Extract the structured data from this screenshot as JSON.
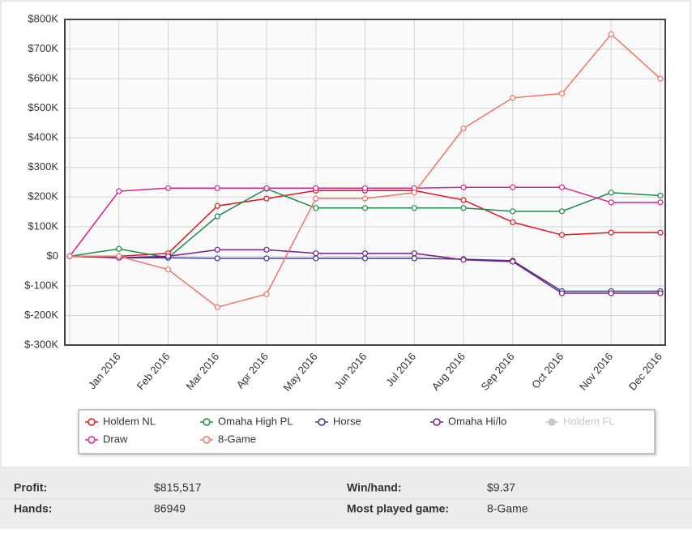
{
  "chart_data": {
    "type": "line",
    "categories": [
      null,
      "Jan 2016",
      "Feb 2016",
      "Mar 2016",
      "Apr 2016",
      "May 2016",
      "Jun 2016",
      "Jul 2016",
      "Aug 2016",
      "Sep 2016",
      "Oct 2016",
      "Nov 2016",
      "Dec 2016"
    ],
    "ylim": [
      -300000,
      800000
    ],
    "yticks": [
      {
        "value": -300000,
        "label": "$-300K"
      },
      {
        "value": -200000,
        "label": "$-200K"
      },
      {
        "value": -100000,
        "label": "$-100K"
      },
      {
        "value": 0,
        "label": "$0"
      },
      {
        "value": 100000,
        "label": "$100K"
      },
      {
        "value": 200000,
        "label": "$200K"
      },
      {
        "value": 300000,
        "label": "$300K"
      },
      {
        "value": 400000,
        "label": "$400K"
      },
      {
        "value": 500000,
        "label": "$500K"
      },
      {
        "value": 600000,
        "label": "$600K"
      },
      {
        "value": 700000,
        "label": "$700K"
      },
      {
        "value": 800000,
        "label": "$800K"
      }
    ],
    "grid": true,
    "legend": "bottom",
    "series": [
      {
        "name": "Holdem NL",
        "color": "#e4141b",
        "values": [
          0,
          0,
          10000,
          170000,
          195000,
          222000,
          222000,
          222000,
          190000,
          115000,
          72000,
          80000,
          80000
        ]
      },
      {
        "name": "Omaha High PL",
        "color": "#1a8a4a",
        "values": [
          0,
          25000,
          -5000,
          135000,
          228000,
          163000,
          163000,
          163000,
          163000,
          152000,
          152000,
          215000,
          205000
        ]
      },
      {
        "name": "Horse",
        "color": "#3b3a8f",
        "values": [
          0,
          -5000,
          -5000,
          -7000,
          -7000,
          -7000,
          -7000,
          -7000,
          -10000,
          -15000,
          -118000,
          -118000,
          -118000
        ]
      },
      {
        "name": "Omaha Hi/lo",
        "color": "#7b1a8a",
        "values": [
          0,
          -5000,
          0,
          22000,
          22000,
          10000,
          10000,
          10000,
          -12000,
          -18000,
          -125000,
          -125000,
          -125000
        ]
      },
      {
        "name": "Holdem FL",
        "color": "#c8c8c8",
        "hidden": true,
        "values": [
          null,
          null,
          null,
          null,
          null,
          null,
          null,
          null,
          null,
          null,
          null,
          null,
          null
        ]
      },
      {
        "name": "Draw",
        "color": "#d9238f",
        "values": [
          0,
          220000,
          230000,
          230000,
          230000,
          230000,
          230000,
          230000,
          233000,
          233000,
          233000,
          182000,
          182000
        ]
      },
      {
        "name": "8-Game",
        "color": "#f07468",
        "values": [
          0,
          0,
          -45000,
          -172000,
          -128000,
          195000,
          195000,
          215000,
          432000,
          535000,
          550000,
          750000,
          600000
        ]
      }
    ]
  },
  "stats": [
    {
      "label": "Profit:",
      "value": "$815,517"
    },
    {
      "label": "Win/hand:",
      "value": "$9.37"
    },
    {
      "label": "Hands:",
      "value": "86949"
    },
    {
      "label": "Most played game:",
      "value": "8-Game"
    }
  ]
}
